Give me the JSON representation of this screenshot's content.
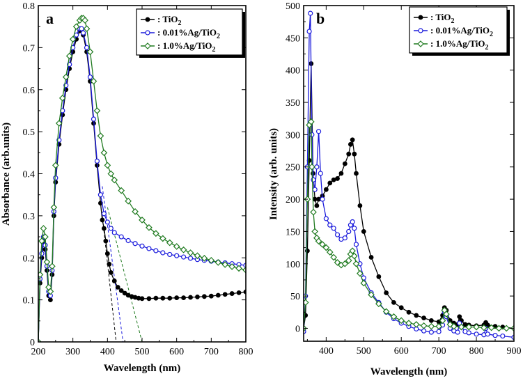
{
  "chart_data": [
    {
      "panel": "a",
      "type": "line",
      "xlabel": "Wavelength (nm)",
      "ylabel": "Absorbance (arb.units)",
      "xlim": [
        200,
        800
      ],
      "ylim": [
        0,
        0.8
      ],
      "xticks": [
        200,
        300,
        400,
        500,
        600,
        700,
        800
      ],
      "yticks": [
        0,
        0.1,
        0.2,
        0.3,
        0.4,
        0.5,
        0.6,
        0.7,
        0.8
      ],
      "legend_position": "top-right",
      "series": [
        {
          "name": "TiO2",
          "label_main": ": TiO",
          "label_sub": "2",
          "color": "#000000",
          "marker": "filled-circle",
          "x": [
            200,
            205,
            210,
            215,
            220,
            225,
            230,
            235,
            240,
            245,
            250,
            260,
            270,
            280,
            290,
            300,
            310,
            320,
            325,
            330,
            340,
            350,
            360,
            370,
            380,
            385,
            390,
            395,
            400,
            405,
            410,
            420,
            430,
            440,
            450,
            460,
            470,
            480,
            490,
            500,
            520,
            540,
            560,
            580,
            600,
            620,
            640,
            660,
            680,
            700,
            720,
            740,
            760,
            780,
            800
          ],
          "y": [
            0.0,
            0.14,
            0.2,
            0.24,
            0.22,
            0.17,
            0.11,
            0.1,
            0.16,
            0.3,
            0.38,
            0.47,
            0.54,
            0.6,
            0.65,
            0.69,
            0.72,
            0.74,
            0.74,
            0.73,
            0.69,
            0.62,
            0.52,
            0.42,
            0.33,
            0.29,
            0.27,
            0.24,
            0.21,
            0.185,
            0.165,
            0.145,
            0.13,
            0.122,
            0.116,
            0.111,
            0.108,
            0.106,
            0.104,
            0.103,
            0.103,
            0.104,
            0.104,
            0.104,
            0.105,
            0.105,
            0.106,
            0.107,
            0.108,
            0.109,
            0.111,
            0.113,
            0.115,
            0.117,
            0.119
          ]
        },
        {
          "name": "0.01%Ag/TiO2",
          "label_main": ": 0.01%Ag/TiO",
          "label_sub": "2",
          "color": "#1a1adc",
          "marker": "open-circle",
          "x": [
            200,
            205,
            210,
            215,
            220,
            225,
            230,
            235,
            240,
            245,
            250,
            260,
            270,
            280,
            290,
            300,
            310,
            320,
            325,
            330,
            340,
            350,
            360,
            370,
            380,
            390,
            400,
            410,
            420,
            440,
            460,
            480,
            500,
            520,
            540,
            560,
            580,
            600,
            620,
            640,
            660,
            680,
            700,
            720,
            740,
            760,
            780,
            800
          ],
          "y": [
            0.0,
            0.15,
            0.21,
            0.25,
            0.23,
            0.18,
            0.12,
            0.11,
            0.17,
            0.31,
            0.39,
            0.48,
            0.55,
            0.61,
            0.66,
            0.7,
            0.73,
            0.745,
            0.745,
            0.735,
            0.7,
            0.63,
            0.53,
            0.43,
            0.35,
            0.305,
            0.285,
            0.27,
            0.26,
            0.25,
            0.241,
            0.234,
            0.228,
            0.222,
            0.217,
            0.212,
            0.208,
            0.205,
            0.202,
            0.199,
            0.196,
            0.194,
            0.192,
            0.19,
            0.188,
            0.186,
            0.184,
            0.182
          ]
        },
        {
          "name": "1.0%Ag/TiO2",
          "label_main": ": 1.0%Ag/TiO",
          "label_sub": "2",
          "color": "#1f7a1f",
          "marker": "open-diamond",
          "x": [
            200,
            205,
            210,
            215,
            220,
            225,
            230,
            235,
            240,
            245,
            250,
            260,
            270,
            280,
            290,
            300,
            310,
            320,
            325,
            330,
            335,
            340,
            350,
            360,
            370,
            380,
            390,
            400,
            410,
            420,
            440,
            460,
            480,
            500,
            520,
            540,
            560,
            580,
            600,
            620,
            640,
            660,
            680,
            700,
            720,
            740,
            760,
            780,
            800
          ],
          "y": [
            0.0,
            0.16,
            0.24,
            0.27,
            0.25,
            0.19,
            0.13,
            0.12,
            0.18,
            0.32,
            0.42,
            0.52,
            0.58,
            0.63,
            0.68,
            0.72,
            0.75,
            0.765,
            0.77,
            0.77,
            0.765,
            0.745,
            0.69,
            0.62,
            0.55,
            0.49,
            0.45,
            0.42,
            0.4,
            0.385,
            0.36,
            0.335,
            0.31,
            0.29,
            0.272,
            0.258,
            0.246,
            0.236,
            0.227,
            0.219,
            0.212,
            0.205,
            0.199,
            0.194,
            0.189,
            0.184,
            0.179,
            0.175,
            0.171
          ]
        }
      ],
      "annotations": [
        {
          "type": "tangent-line",
          "color": "#000000",
          "x": [
            385,
            425
          ],
          "y": [
            0.3,
            0.0
          ]
        },
        {
          "type": "tangent-line",
          "color": "#1a1adc",
          "x": [
            385,
            445
          ],
          "y": [
            0.37,
            0.0
          ]
        },
        {
          "type": "tangent-line",
          "color": "#1f7a1f",
          "x": [
            400,
            500
          ],
          "y": [
            0.32,
            0.0
          ]
        }
      ]
    },
    {
      "panel": "b",
      "type": "line",
      "xlabel": "Wavelength (nm)",
      "ylabel": "Intensity (arb. units)",
      "xlim": [
        340,
        900
      ],
      "ylim": [
        -20,
        500
      ],
      "xticks": [
        400,
        500,
        600,
        700,
        800,
        900
      ],
      "yticks": [
        0,
        50,
        100,
        150,
        200,
        250,
        300,
        350,
        400,
        450,
        500
      ],
      "legend_position": "top-right",
      "series": [
        {
          "name": "TiO2",
          "label_main": ": TiO",
          "label_sub": "2",
          "color": "#000000",
          "marker": "filled-circle",
          "x": [
            340,
            345,
            350,
            355,
            360,
            365,
            370,
            375,
            380,
            390,
            400,
            410,
            420,
            430,
            440,
            450,
            460,
            465,
            470,
            475,
            480,
            490,
            500,
            520,
            540,
            560,
            580,
            600,
            620,
            640,
            660,
            680,
            700,
            710,
            715,
            720,
            730,
            740,
            750,
            755,
            760,
            770,
            780,
            800,
            820,
            825,
            830,
            850,
            870,
            900
          ],
          "y": [
            0,
            20,
            120,
            260,
            410,
            240,
            200,
            190,
            200,
            205,
            215,
            225,
            230,
            232,
            240,
            255,
            270,
            285,
            292,
            270,
            240,
            190,
            150,
            110,
            80,
            55,
            40,
            32,
            25,
            20,
            16,
            12,
            10,
            20,
            32,
            28,
            12,
            8,
            6,
            18,
            12,
            6,
            5,
            4,
            5,
            9,
            5,
            3,
            2,
            0
          ]
        },
        {
          "name": "0.01%Ag/TiO2",
          "label_main": ": 0.01%Ag/TiO",
          "label_sub": "2",
          "color": "#1a1adc",
          "marker": "open-circle",
          "x": [
            340,
            345,
            350,
            355,
            358,
            362,
            366,
            370,
            375,
            380,
            385,
            390,
            400,
            410,
            420,
            430,
            440,
            450,
            460,
            465,
            470,
            475,
            480,
            490,
            500,
            520,
            540,
            560,
            580,
            600,
            620,
            640,
            660,
            680,
            700,
            710,
            715,
            720,
            730,
            740,
            750,
            755,
            760,
            770,
            780,
            800,
            820,
            825,
            830,
            850,
            870,
            900
          ],
          "y": [
            -5,
            50,
            250,
            460,
            488,
            300,
            230,
            215,
            250,
            305,
            240,
            200,
            170,
            160,
            155,
            145,
            138,
            140,
            150,
            160,
            165,
            155,
            130,
            100,
            78,
            55,
            40,
            25,
            15,
            8,
            3,
            -1,
            -4,
            -6,
            -5,
            5,
            25,
            18,
            0,
            -4,
            -6,
            8,
            2,
            -5,
            -7,
            -9,
            -10,
            0,
            -9,
            -11,
            -12,
            -14
          ]
        },
        {
          "name": "1.0%Ag/TiO2",
          "label_main": ": 1.0%Ag/TiO",
          "label_sub": "2",
          "color": "#1f7a1f",
          "marker": "open-diamond",
          "x": [
            340,
            345,
            350,
            355,
            360,
            362,
            366,
            370,
            375,
            380,
            390,
            400,
            410,
            420,
            430,
            440,
            450,
            460,
            465,
            470,
            475,
            480,
            490,
            500,
            520,
            540,
            560,
            580,
            600,
            620,
            640,
            660,
            680,
            700,
            710,
            715,
            720,
            730,
            740,
            760,
            780,
            800,
            820,
            840,
            860,
            880,
            900
          ],
          "y": [
            0,
            40,
            200,
            315,
            320,
            250,
            180,
            150,
            140,
            135,
            130,
            125,
            118,
            110,
            102,
            98,
            100,
            105,
            115,
            120,
            112,
            100,
            85,
            70,
            52,
            38,
            26,
            18,
            12,
            8,
            6,
            4,
            3,
            3,
            12,
            28,
            22,
            6,
            3,
            2,
            2,
            2,
            1,
            1,
            0,
            0,
            0
          ]
        }
      ],
      "annotations": []
    }
  ]
}
